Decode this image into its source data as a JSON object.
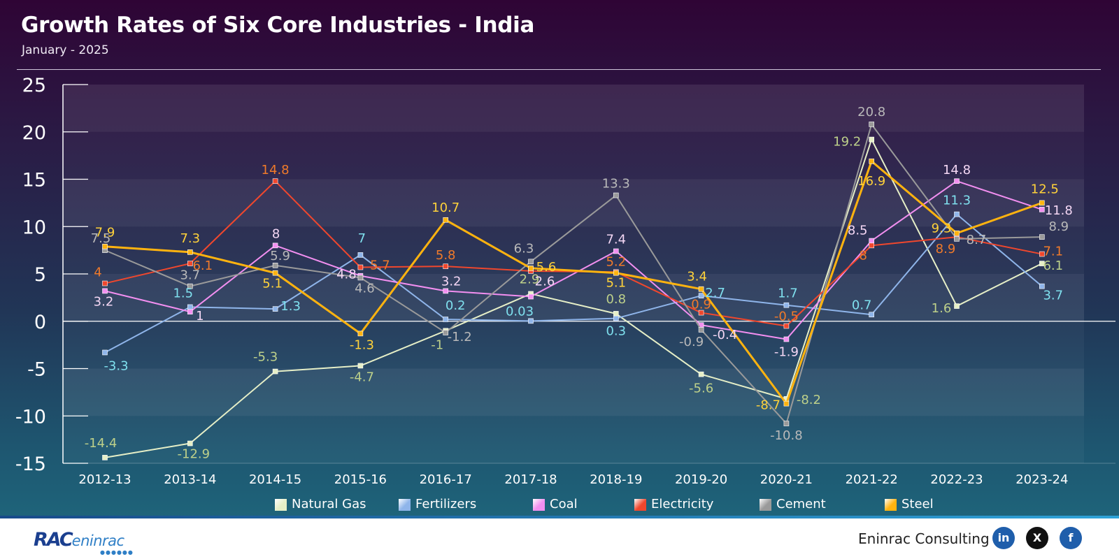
{
  "header": {
    "title": "Growth Rates of Six Core Industries - India",
    "subtitle": "January - 2025"
  },
  "chart_data": {
    "type": "line",
    "title": "Growth Rates of Six Core Industries - India",
    "subtitle": "January - 2025",
    "categories": [
      "2012-13",
      "2013-14",
      "2014-15",
      "2015-16",
      "2016-17",
      "2017-18",
      "2018-19",
      "2019-20",
      "2020-21",
      "2021-22",
      "2022-23",
      "2023-24"
    ],
    "ylim": [
      -15,
      25
    ],
    "yticks": [
      25,
      20,
      15,
      10,
      5,
      0,
      -5,
      -10,
      -15
    ],
    "grid": false,
    "legend_position": "bottom",
    "series": [
      {
        "name": "Natural Gas",
        "color": "#e6efc7",
        "label_color": "#bdd08a",
        "values": [
          -14.4,
          -12.9,
          -5.3,
          -4.7,
          -1,
          2.9,
          0.8,
          -5.6,
          -8.2,
          19.2,
          1.6,
          6.1
        ],
        "labels": [
          "-14.4",
          "-12.9",
          "-5.3",
          "-4.7",
          "-1",
          "2.9",
          "0.8",
          "-5.6",
          "-8.2",
          "19.2",
          "1.6",
          "6.1"
        ]
      },
      {
        "name": "Fertilizers",
        "color": "#8fb5ea",
        "label_color": "#7fe0ee",
        "values": [
          -3.3,
          1.5,
          1.3,
          7,
          0.2,
          0.03,
          0.3,
          2.7,
          1.7,
          0.7,
          11.3,
          3.7
        ],
        "labels": [
          "-3.3",
          "1.5",
          "1.3",
          "7",
          "0.2",
          "0.03",
          "0.3",
          "2.7",
          "1.7",
          "0.7",
          "11.3",
          "3.7"
        ]
      },
      {
        "name": "Coal",
        "color": "#f28ff0",
        "label_color": "#f4d7f4",
        "values": [
          3.2,
          1,
          8,
          4.8,
          3.2,
          2.6,
          7.4,
          -0.4,
          -1.9,
          8.5,
          14.8,
          11.8
        ],
        "labels": [
          "3.2",
          "1",
          "8",
          "4.8",
          "3.2",
          "2.6",
          "7.4",
          "-0.4",
          "-1.9",
          "8.5",
          "14.8",
          "11.8"
        ]
      },
      {
        "name": "Electricity",
        "color": "#f0472d",
        "label_color": "#f07a2a",
        "values": [
          4,
          6.1,
          14.8,
          5.7,
          5.8,
          5.3,
          5.2,
          0.9,
          -0.5,
          8,
          8.9,
          7.1
        ],
        "labels": [
          "4",
          "6.1",
          "14.8",
          "5.7",
          "5.8",
          "",
          "5.2",
          "0.9",
          "-0.5",
          "8",
          "8.9",
          "7.1"
        ]
      },
      {
        "name": "Cement",
        "color": "#9a9a9a",
        "label_color": "#b9b9b9",
        "values": [
          7.5,
          3.7,
          5.9,
          4.6,
          -1.2,
          6.3,
          13.3,
          -0.9,
          -10.8,
          20.8,
          8.7,
          8.9
        ],
        "labels": [
          "7.5",
          "3.7",
          "5.9",
          "4.6",
          "-1.2",
          "6.3",
          "13.3",
          "-0.9",
          "-10.8",
          "20.8",
          "8.7",
          "8.9"
        ]
      },
      {
        "name": "Steel",
        "color": "#ffb30f",
        "label_color": "#ffd23a",
        "values": [
          7.9,
          7.3,
          5.1,
          -1.3,
          10.7,
          5.6,
          5.1,
          3.4,
          -8.7,
          16.9,
          9.3,
          12.5
        ],
        "labels": [
          "7.9",
          "7.3",
          "5.1",
          "-1.3",
          "10.7",
          "5.6",
          "5.1",
          "3.4",
          "-8.7",
          "16.9",
          "9.3",
          "12.5"
        ]
      }
    ]
  },
  "legend": {
    "items": [
      {
        "label": "Natural Gas",
        "color": "#e6efc7"
      },
      {
        "label": "Fertilizers",
        "color": "#8fb5ea"
      },
      {
        "label": "Coal",
        "color": "#f28ff0"
      },
      {
        "label": "Electricity",
        "color": "#f0472d"
      },
      {
        "label": "Cement",
        "color": "#9a9a9a"
      },
      {
        "label": "Steel",
        "color": "#ffb30f"
      }
    ]
  },
  "footer": {
    "logo_main": "RAC",
    "logo_sub": "eninrac",
    "company": "Eninrac Consulting",
    "social": [
      {
        "name": "linkedin",
        "glyph": "in",
        "color": "#1f5eab"
      },
      {
        "name": "x",
        "glyph": "X",
        "color": "#111111"
      },
      {
        "name": "facebook",
        "glyph": "f",
        "color": "#1f5eab"
      }
    ]
  }
}
